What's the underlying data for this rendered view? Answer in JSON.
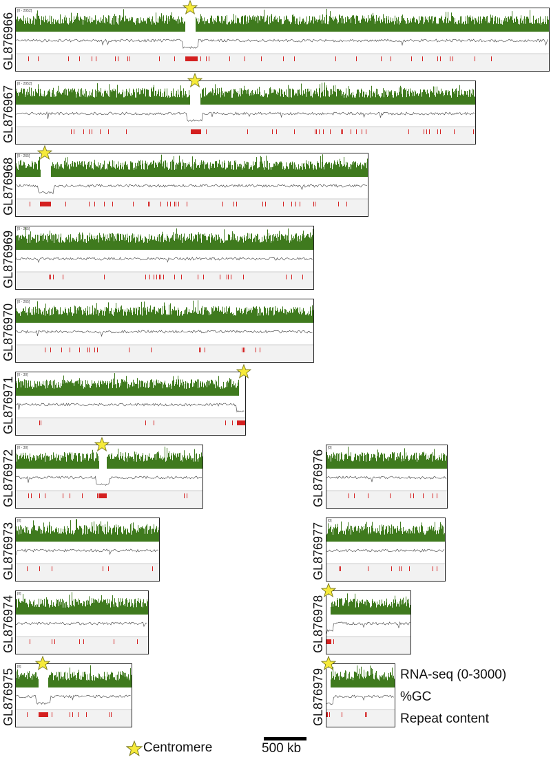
{
  "panels": [
    {
      "label": "GL876966",
      "range": "[0 - 2952]",
      "centromere": true
    },
    {
      "label": "GL876967",
      "range": "[0 - 2952]",
      "centromere": true
    },
    {
      "label": "GL876968",
      "range": "[0 - 265]",
      "centromere": true
    },
    {
      "label": "GL876969",
      "range": "[0 - 265]",
      "centromere": false
    },
    {
      "label": "GL876970",
      "range": "[0 - 265]",
      "centromere": false
    },
    {
      "label": "GL876971",
      "range": "[0 - 30]",
      "centromere": true
    },
    {
      "label": "GL876972",
      "range": "[0 - 30]",
      "centromere": true
    },
    {
      "label": "GL876973",
      "range": "[0]",
      "centromere": false
    },
    {
      "label": "GL876974",
      "range": "[0]",
      "centromere": false
    },
    {
      "label": "GL876975",
      "range": "[0]",
      "centromere": true
    },
    {
      "label": "GL876976",
      "range": "[0]",
      "centromere": false
    },
    {
      "label": "GL876977",
      "range": "[0]",
      "centromere": false
    },
    {
      "label": "GL876978",
      "range": "[0]",
      "centromere": true
    },
    {
      "label": "GL876979",
      "range": "[0]",
      "centromere": true
    }
  ],
  "legend": {
    "centromere": "Centromere",
    "scale": "500 kb",
    "tracks": [
      "RNA-seq (0-3000)",
      "%GC",
      "Repeat content"
    ]
  },
  "colors": {
    "rna": "#3f7a1e",
    "gc": "#555555",
    "repeat": "#d42020",
    "star_fill": "#f6ea3a",
    "star_stroke": "#7a7a20",
    "box_bg": "#f2f2f2"
  }
}
